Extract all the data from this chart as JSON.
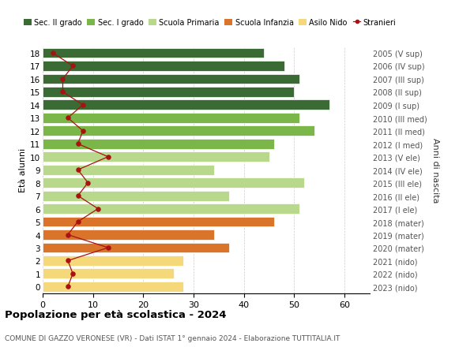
{
  "ages": [
    18,
    17,
    16,
    15,
    14,
    13,
    12,
    11,
    10,
    9,
    8,
    7,
    6,
    5,
    4,
    3,
    2,
    1,
    0
  ],
  "right_labels": [
    "2005 (V sup)",
    "2006 (IV sup)",
    "2007 (III sup)",
    "2008 (II sup)",
    "2009 (I sup)",
    "2010 (III med)",
    "2011 (II med)",
    "2012 (I med)",
    "2013 (V ele)",
    "2014 (IV ele)",
    "2015 (III ele)",
    "2016 (II ele)",
    "2017 (I ele)",
    "2018 (mater)",
    "2019 (mater)",
    "2020 (mater)",
    "2021 (nido)",
    "2022 (nido)",
    "2023 (nido)"
  ],
  "bar_values": [
    44,
    48,
    51,
    50,
    57,
    51,
    54,
    46,
    45,
    34,
    52,
    37,
    51,
    46,
    34,
    37,
    28,
    26,
    28
  ],
  "bar_colors": [
    "#3a6b35",
    "#3a6b35",
    "#3a6b35",
    "#3a6b35",
    "#3a6b35",
    "#7ab648",
    "#7ab648",
    "#7ab648",
    "#b8d88b",
    "#b8d88b",
    "#b8d88b",
    "#b8d88b",
    "#b8d88b",
    "#d9742a",
    "#d9742a",
    "#d9742a",
    "#f5d87a",
    "#f5d87a",
    "#f5d87a"
  ],
  "stranieri_values": [
    2,
    6,
    4,
    4,
    8,
    5,
    8,
    7,
    13,
    7,
    9,
    7,
    11,
    7,
    5,
    13,
    5,
    6,
    5
  ],
  "xlim": [
    0,
    65
  ],
  "xticks": [
    0,
    10,
    20,
    30,
    40,
    50,
    60
  ],
  "xlabel_left": "Età alunni",
  "xlabel_right": "Anni di nascita",
  "title": "Popolazione per età scolastica - 2024",
  "subtitle": "COMUNE DI GAZZO VERONESE (VR) - Dati ISTAT 1° gennaio 2024 - Elaborazione TUTTITALIA.IT",
  "legend_items": [
    {
      "label": "Sec. II grado",
      "color": "#3a6b35"
    },
    {
      "label": "Sec. I grado",
      "color": "#7ab648"
    },
    {
      "label": "Scuola Primaria",
      "color": "#b8d88b"
    },
    {
      "label": "Scuola Infanzia",
      "color": "#d9742a"
    },
    {
      "label": "Asilo Nido",
      "color": "#f5d87a"
    },
    {
      "label": "Stranieri",
      "color": "#aa1111"
    }
  ],
  "bg_color": "#ffffff",
  "grid_color": "#cccccc",
  "bar_height": 0.78,
  "bar_edge_color": "white",
  "bar_edge_width": 0.5
}
